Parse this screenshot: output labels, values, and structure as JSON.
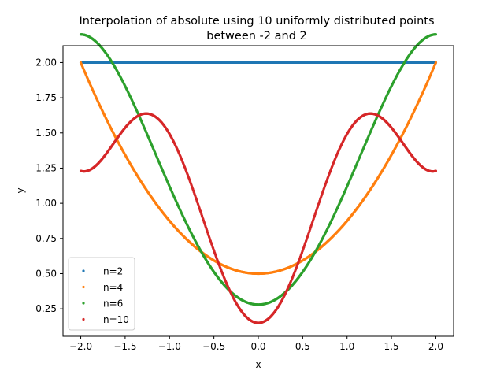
{
  "chart_data": {
    "type": "scatter",
    "title_line1": "Interpolation of absolute using 10 uniformly distributed points",
    "title_line2": "between -2 and 2",
    "xlabel": "x",
    "ylabel": "y",
    "xlim": [
      -2.2,
      2.2
    ],
    "ylim": [
      0.055,
      2.12
    ],
    "x_ticks": [
      -2.0,
      -1.5,
      -1.0,
      -0.5,
      0.0,
      0.5,
      1.0,
      1.5,
      2.0
    ],
    "x_tick_labels": [
      "−2.0",
      "−1.5",
      "−1.0",
      "−0.5",
      "0.0",
      "0.5",
      "1.0",
      "1.5",
      "2.0"
    ],
    "y_ticks": [
      0.25,
      0.5,
      0.75,
      1.0,
      1.25,
      1.5,
      1.75,
      2.0
    ],
    "y_tick_labels": [
      "0.25",
      "0.50",
      "0.75",
      "1.00",
      "1.25",
      "1.50",
      "1.75",
      "2.00"
    ],
    "grid": false,
    "legend_position": "lower-left",
    "x_range": [
      -2.0,
      2.0
    ],
    "series": [
      {
        "name": "n=2",
        "color": "#1f77b4",
        "coefficients": [
          2.0
        ]
      },
      {
        "name": "n=4",
        "color": "#ff7f0e",
        "coefficients": [
          0.5,
          0.0,
          0.375
        ]
      },
      {
        "name": "n=6",
        "color": "#2ca02c",
        "coefficients": [
          0.28,
          0.0,
          0.96,
          0.0,
          -0.12
        ]
      },
      {
        "name": "n=10",
        "color": "#d62728",
        "coefficients": [
          0.15,
          0.0,
          2.35,
          0.0,
          -1.232,
          0.0,
          0.24,
          0.0,
          -0.0155
        ]
      }
    ]
  }
}
